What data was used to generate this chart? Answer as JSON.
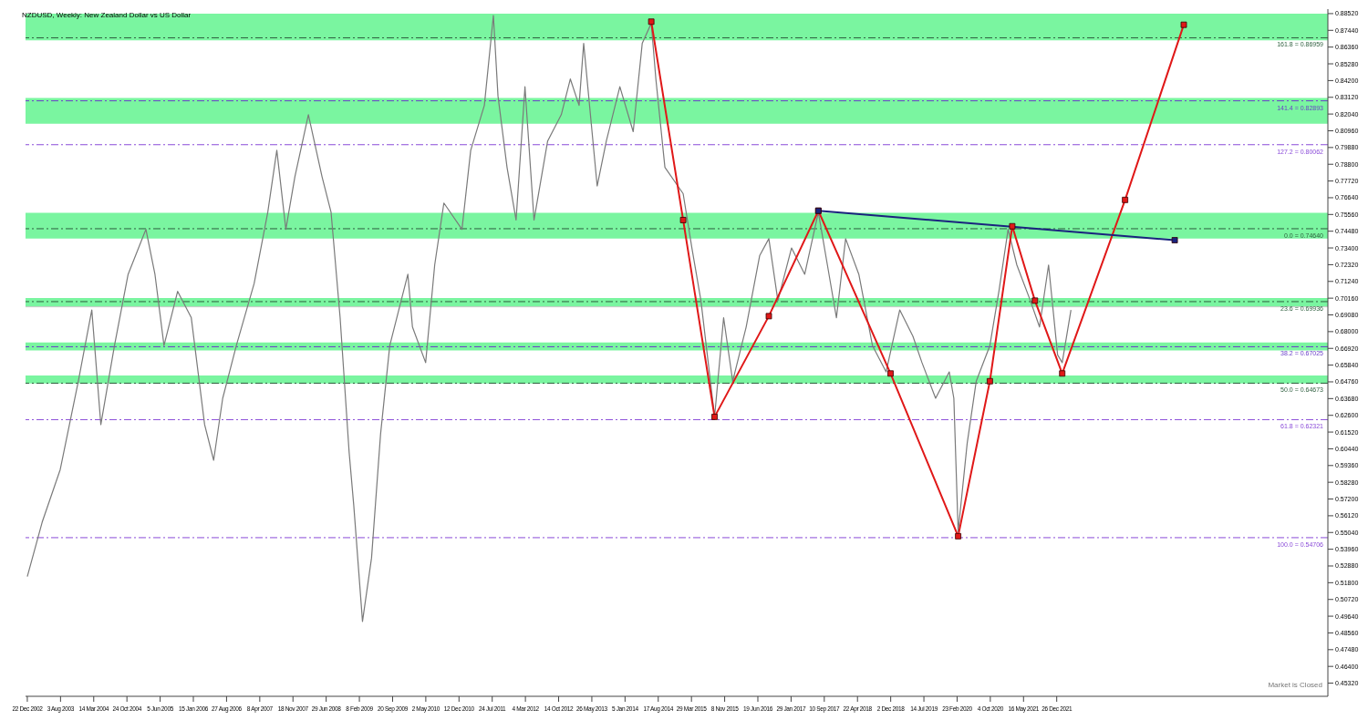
{
  "chart_data": {
    "type": "line",
    "title": "NZDUSD, Weekly:  New Zealand Dollar vs US Dollar",
    "annotations": [
      "Market is Closed"
    ],
    "xlim": [
      "2002-12-10",
      "2026-12-29"
    ],
    "ylim": [
      0.4447,
      0.8881
    ],
    "xticks": [
      {
        "value": "2002-12-22",
        "label": "22 Dec 2002"
      },
      {
        "value": "2003-08-03",
        "label": "3 Aug 2003"
      },
      {
        "value": "2004-03-14",
        "label": "14 Mar 2004"
      },
      {
        "value": "2004-10-24",
        "label": "24 Oct 2004"
      },
      {
        "value": "2005-06-05",
        "label": "5 Jun 2005"
      },
      {
        "value": "2006-01-15",
        "label": "15 Jan 2006"
      },
      {
        "value": "2006-08-27",
        "label": "27 Aug 2006"
      },
      {
        "value": "2007-04-08",
        "label": "8 Apr 2007"
      },
      {
        "value": "2007-11-18",
        "label": "18 Nov 2007"
      },
      {
        "value": "2008-06-29",
        "label": "29 Jun 2008"
      },
      {
        "value": "2009-02-08",
        "label": "8 Feb 2009"
      },
      {
        "value": "2009-09-20",
        "label": "20 Sep 2009"
      },
      {
        "value": "2010-05-02",
        "label": "2 May 2010"
      },
      {
        "value": "2010-12-12",
        "label": "12 Dec 2010"
      },
      {
        "value": "2011-07-24",
        "label": "24 Jul 2011"
      },
      {
        "value": "2012-03-04",
        "label": "4 Mar 2012"
      },
      {
        "value": "2012-10-14",
        "label": "14 Oct 2012"
      },
      {
        "value": "2013-05-26",
        "label": "26 May 2013"
      },
      {
        "value": "2014-01-05",
        "label": "5 Jan 2014"
      },
      {
        "value": "2014-08-17",
        "label": "17 Aug 2014"
      },
      {
        "value": "2015-03-29",
        "label": "29 Mar 2015"
      },
      {
        "value": "2015-11-08",
        "label": "8 Nov 2015"
      },
      {
        "value": "2016-06-19",
        "label": "19 Jun 2016"
      },
      {
        "value": "2017-01-29",
        "label": "29 Jan 2017"
      },
      {
        "value": "2017-09-10",
        "label": "10 Sep 2017"
      },
      {
        "value": "2018-04-22",
        "label": "22 Apr 2018"
      },
      {
        "value": "2018-12-02",
        "label": "2 Dec 2018"
      },
      {
        "value": "2019-07-14",
        "label": "14 Jul 2019"
      },
      {
        "value": "2020-02-23",
        "label": "23 Feb 2020"
      },
      {
        "value": "2020-10-04",
        "label": "4 Oct 2020"
      },
      {
        "value": "2021-05-16",
        "label": "16 May 2021"
      },
      {
        "value": "2021-12-26",
        "label": "26 Dec 2021"
      }
    ],
    "yticks": [
      {
        "value": 0.8852,
        "label": "0.88520"
      },
      {
        "value": 0.8744,
        "label": "0.87440"
      },
      {
        "value": 0.8636,
        "label": "0.86360"
      },
      {
        "value": 0.8528,
        "label": "0.85280"
      },
      {
        "value": 0.842,
        "label": "0.84200"
      },
      {
        "value": 0.8312,
        "label": "0.83120"
      },
      {
        "value": 0.8204,
        "label": "0.82040"
      },
      {
        "value": 0.8096,
        "label": "0.80960"
      },
      {
        "value": 0.7988,
        "label": "0.79880"
      },
      {
        "value": 0.788,
        "label": "0.78800"
      },
      {
        "value": 0.7772,
        "label": "0.77720"
      },
      {
        "value": 0.7664,
        "label": "0.76640"
      },
      {
        "value": 0.7556,
        "label": "0.75560"
      },
      {
        "value": 0.7448,
        "label": "0.74480"
      },
      {
        "value": 0.734,
        "label": "0.73400"
      },
      {
        "value": 0.7232,
        "label": "0.72320"
      },
      {
        "value": 0.7124,
        "label": "0.71240"
      },
      {
        "value": 0.7016,
        "label": "0.70160"
      },
      {
        "value": 0.6908,
        "label": "0.69080"
      },
      {
        "value": 0.68,
        "label": "0.68000"
      },
      {
        "value": 0.6692,
        "label": "0.66920"
      },
      {
        "value": 0.6584,
        "label": "0.65840"
      },
      {
        "value": 0.6476,
        "label": "0.64760"
      },
      {
        "value": 0.6368,
        "label": "0.63680"
      },
      {
        "value": 0.626,
        "label": "0.62600"
      },
      {
        "value": 0.6152,
        "label": "0.61520"
      },
      {
        "value": 0.6044,
        "label": "0.60440"
      },
      {
        "value": 0.5936,
        "label": "0.59360"
      },
      {
        "value": 0.5828,
        "label": "0.58280"
      },
      {
        "value": 0.572,
        "label": "0.57200"
      },
      {
        "value": 0.5612,
        "label": "0.56120"
      },
      {
        "value": 0.5504,
        "label": "0.55040"
      },
      {
        "value": 0.5396,
        "label": "0.53960"
      },
      {
        "value": 0.5288,
        "label": "0.52880"
      },
      {
        "value": 0.518,
        "label": "0.51800"
      },
      {
        "value": 0.5072,
        "label": "0.50720"
      },
      {
        "value": 0.4964,
        "label": "0.49640"
      },
      {
        "value": 0.4856,
        "label": "0.48560"
      },
      {
        "value": 0.4748,
        "label": "0.47480"
      },
      {
        "value": 0.464,
        "label": "0.46400"
      },
      {
        "value": 0.4532,
        "label": "0.45320"
      }
    ],
    "bands": [
      {
        "axis": "y",
        "from": 0.868,
        "to": 0.8852,
        "color": "#7af5a0"
      },
      {
        "axis": "y",
        "from": 0.8141,
        "to": 0.8307,
        "color": "#7af5a0"
      },
      {
        "axis": "y",
        "from": 0.7401,
        "to": 0.7567,
        "color": "#7af5a0"
      },
      {
        "axis": "y",
        "from": 0.6959,
        "to": 0.7017,
        "color": "#7af5a0"
      },
      {
        "axis": "y",
        "from": 0.6678,
        "to": 0.673,
        "color": "#7af5a0"
      },
      {
        "axis": "y",
        "from": 0.6466,
        "to": 0.6517,
        "color": "#7af5a0"
      }
    ],
    "ref_lines": [
      {
        "axis": "y",
        "value": 0.86959,
        "label": "161.8 = 0.86959",
        "color": "#2f5f3f",
        "line_style": "dashed"
      },
      {
        "axis": "y",
        "value": 0.82893,
        "label": "141.4 = 0.82893",
        "color": "#6a3fc8",
        "line_style": "dashed"
      },
      {
        "axis": "y",
        "value": 0.80062,
        "label": "127.2 = 0.80062",
        "color": "#8a4bd8",
        "line_style": "dashed"
      },
      {
        "axis": "y",
        "value": 0.7464,
        "label": "0.0 = 0.74640",
        "color": "#2f5f3f",
        "line_style": "dashed"
      },
      {
        "axis": "y",
        "value": 0.69936,
        "label": "23.6 = 0.69936",
        "color": "#2f5f3f",
        "line_style": "dashed"
      },
      {
        "axis": "y",
        "value": 0.67025,
        "label": "38.2 = 0.67025",
        "color": "#6a3fc8",
        "line_style": "dashed"
      },
      {
        "axis": "y",
        "value": 0.64673,
        "label": "50.0 = 0.64673",
        "color": "#2f5f3f",
        "line_style": "dashed"
      },
      {
        "axis": "y",
        "value": 0.62321,
        "label": "61.8 = 0.62321",
        "color": "#8a4bd8",
        "line_style": "dashed"
      },
      {
        "axis": "y",
        "value": 0.54706,
        "label": "100.0 = 0.54706",
        "color": "#8a4bd8",
        "line_style": "dashed"
      },
      {
        "axis": "y",
        "value": 0.696,
        "color": "#c8c8c8",
        "line_style": "solid"
      }
    ],
    "series": [
      {
        "color": "#7a7a7a",
        "marker": "none",
        "x": [
          "2002-12-22",
          "2003-04",
          "2003-08",
          "2003-12",
          "2004-03",
          "2004-05",
          "2004-08",
          "2004-11",
          "2005-03",
          "2005-05",
          "2005-07",
          "2005-10",
          "2006-01",
          "2006-04",
          "2006-06",
          "2006-08",
          "2006-11",
          "2007-03",
          "2007-06",
          "2007-08",
          "2007-10",
          "2007-12",
          "2008-03",
          "2008-06",
          "2008-08",
          "2008-10",
          "2008-12",
          "2009-01",
          "2009-03",
          "2009-05",
          "2009-07",
          "2009-09",
          "2010-01",
          "2010-02",
          "2010-05",
          "2010-07",
          "2010-09",
          "2011-01",
          "2011-03",
          "2011-06",
          "2011-08",
          "2011-09",
          "2011-11",
          "2012-01",
          "2012-03",
          "2012-05",
          "2012-08",
          "2012-11",
          "2013-01",
          "2013-03",
          "2013-04",
          "2013-07",
          "2013-09",
          "2013-12",
          "2014-03",
          "2014-05",
          "2014-07",
          "2014-08",
          "2014-10",
          "2015-02",
          "2015-04",
          "2015-06",
          "2015-09",
          "2015-11",
          "2016-01",
          "2016-04",
          "2016-07",
          "2016-09",
          "2016-11",
          "2017-02",
          "2017-05",
          "2017-08",
          "2017-10",
          "2017-12",
          "2018-02",
          "2018-05",
          "2018-08",
          "2018-11",
          "2019-02",
          "2019-05",
          "2019-07",
          "2019-10",
          "2020-01",
          "2020-02",
          "2020-03",
          "2020-05",
          "2020-07",
          "2020-10",
          "2020-12",
          "2021-02",
          "2021-04",
          "2021-07",
          "2021-09",
          "2021-11",
          "2022-01",
          "2022-02",
          "2022-04"
        ],
        "values": [
          0.522,
          0.557,
          0.591,
          0.648,
          0.694,
          0.62,
          0.671,
          0.717,
          0.746,
          0.717,
          0.671,
          0.706,
          0.689,
          0.62,
          0.597,
          0.637,
          0.671,
          0.711,
          0.757,
          0.797,
          0.746,
          0.78,
          0.82,
          0.78,
          0.757,
          0.689,
          0.602,
          0.568,
          0.493,
          0.534,
          0.614,
          0.671,
          0.717,
          0.683,
          0.66,
          0.723,
          0.763,
          0.746,
          0.797,
          0.826,
          0.884,
          0.832,
          0.786,
          0.752,
          0.838,
          0.752,
          0.803,
          0.82,
          0.843,
          0.826,
          0.866,
          0.774,
          0.803,
          0.838,
          0.809,
          0.866,
          0.879,
          0.843,
          0.786,
          0.769,
          0.734,
          0.7,
          0.625,
          0.689,
          0.648,
          0.683,
          0.729,
          0.74,
          0.7,
          0.734,
          0.717,
          0.757,
          0.723,
          0.689,
          0.74,
          0.717,
          0.671,
          0.654,
          0.694,
          0.677,
          0.66,
          0.637,
          0.654,
          0.637,
          0.551,
          0.608,
          0.648,
          0.671,
          0.706,
          0.746,
          0.723,
          0.7,
          0.683,
          0.723,
          0.665,
          0.66,
          0.694
        ]
      },
      {
        "color": "#e01818",
        "marker": "square",
        "x": [
          "2014-07",
          "2015-02",
          "2015-09",
          "2016-09",
          "2017-08",
          "2018-12",
          "2020-03",
          "2020-10",
          "2021-03",
          "2021-08",
          "2022-02",
          "2023-04",
          "2024-05"
        ],
        "values": [
          0.88,
          0.752,
          0.625,
          0.69,
          0.758,
          0.653,
          0.548,
          0.648,
          0.748,
          0.7,
          0.653,
          0.765,
          0.878
        ]
      },
      {
        "color": "#1a237e",
        "marker": "square",
        "x": [
          "2017-08",
          "2024-03"
        ],
        "values": [
          0.758,
          0.739
        ]
      }
    ]
  }
}
